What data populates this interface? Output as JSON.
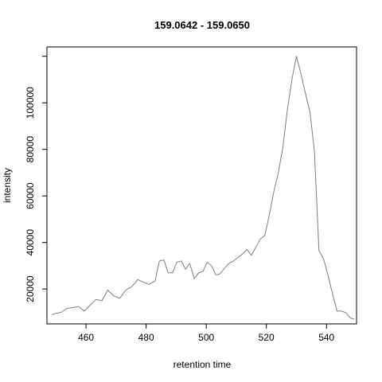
{
  "chart_data": {
    "type": "line",
    "title": "159.0642 - 159.0650",
    "xlabel": "retention time",
    "ylabel": "intensity",
    "xlim": [
      547,
      550
    ],
    "ylim": [
      5000,
      124000
    ],
    "x_ticks": [
      460,
      480,
      500,
      520,
      540
    ],
    "y_ticks": [
      20000,
      40000,
      60000,
      80000,
      100000
    ],
    "y_tick_marks": [
      20000,
      40000,
      60000,
      80000,
      100000,
      120000
    ],
    "line_color": "#7f7f7f",
    "grid": false,
    "series": [
      {
        "x": [
          448.6,
          450.0,
          451.8,
          453.4,
          455.5,
          457.5,
          459.4,
          461.3,
          463.3,
          465.3,
          467.2,
          469.3,
          471.2,
          473.2,
          475.2,
          477.2,
          479.1,
          481.0,
          483.0,
          484.4,
          485.9,
          487.3,
          488.8,
          490.2,
          491.7,
          493.1,
          494.5,
          496.0,
          497.5,
          498.9,
          500.3,
          501.8,
          503.2,
          504.6,
          506.1,
          507.5,
          509.0,
          510.5,
          512.0,
          513.5,
          515.0,
          516.5,
          518.0,
          519.5,
          521.0,
          522.5,
          524.0,
          525.5,
          527.0,
          528.5,
          530.0,
          531.6,
          533.0,
          534.5,
          536.0,
          537.5,
          539.0,
          540.5,
          542.0,
          543.5,
          545.0,
          546.5,
          548.0,
          549.4
        ],
        "y": [
          9000,
          9500,
          10000,
          11500,
          12000,
          12500,
          10500,
          13000,
          15500,
          15000,
          19500,
          17000,
          16000,
          19500,
          21000,
          24000,
          23000,
          22000,
          23500,
          32000,
          32500,
          27000,
          27000,
          31500,
          32000,
          28500,
          31000,
          24500,
          27000,
          27500,
          31500,
          30000,
          26000,
          26500,
          29000,
          31000,
          32000,
          33500,
          35000,
          37000,
          34500,
          38000,
          41500,
          43000,
          52000,
          62000,
          70000,
          81000,
          97000,
          110000,
          120000,
          112000,
          104000,
          96000,
          79000,
          36500,
          33000,
          26000,
          18000,
          10500,
          10500,
          9800,
          7500,
          7000
        ]
      }
    ]
  }
}
